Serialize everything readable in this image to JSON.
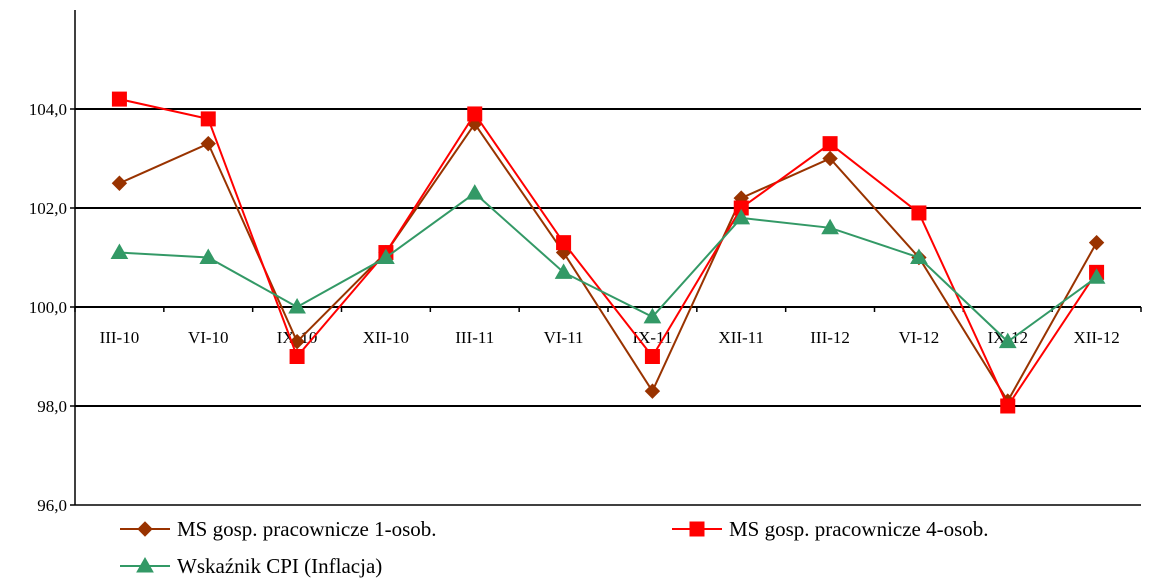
{
  "chart_data": {
    "type": "line",
    "title": "",
    "xlabel": "",
    "ylabel": "",
    "categories": [
      "III-10",
      "VI-10",
      "IX-10",
      "XII-10",
      "III-11",
      "VI-11",
      "IX-11",
      "XII-11",
      "III-12",
      "VI-12",
      "IX-12",
      "XII-12"
    ],
    "ylim": [
      96,
      106
    ],
    "yticks": [
      96,
      98,
      100,
      102,
      104
    ],
    "ytick_labels": [
      "96,0",
      "98,0",
      "100,0",
      "102,0",
      "104,0"
    ],
    "x_axis_crosses_at": 100,
    "grid": "horizontal",
    "legend_position": "bottom",
    "series": [
      {
        "name": "MS gosp. pracownicze 1-osob.",
        "color": "#993300",
        "marker": "diamond",
        "values": [
          102.5,
          103.3,
          99.3,
          101.1,
          103.7,
          101.1,
          98.3,
          102.2,
          103.0,
          101.0,
          98.1,
          101.3
        ]
      },
      {
        "name": "MS gosp. pracownicze 4-osob.",
        "color": "#ff0000",
        "marker": "square",
        "values": [
          104.2,
          103.8,
          99.0,
          101.1,
          103.9,
          101.3,
          99.0,
          102.0,
          103.3,
          101.9,
          98.0,
          100.7
        ]
      },
      {
        "name": "Wskaźnik CPI (Inflacja)",
        "color": "#339966",
        "marker": "triangle",
        "values": [
          101.1,
          101.0,
          100.0,
          101.0,
          102.3,
          100.7,
          99.8,
          101.8,
          101.6,
          101.0,
          99.3,
          100.6
        ]
      }
    ]
  }
}
